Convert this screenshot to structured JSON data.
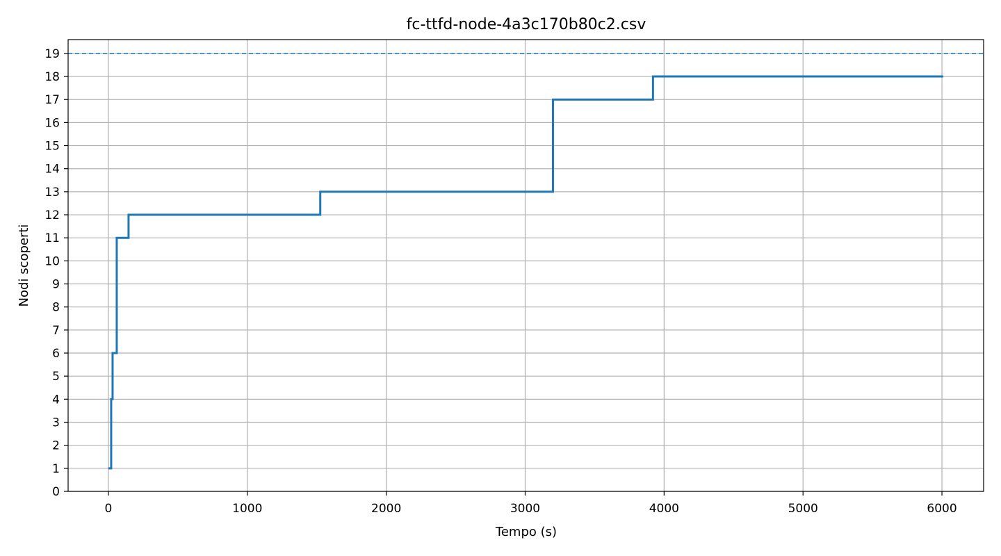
{
  "chart_data": {
    "type": "line",
    "step": "post",
    "title": "fc-ttfd-node-4a3c170b80c2.csv",
    "xlabel": "Tempo (s)",
    "ylabel": "Nodi scoperti",
    "xlim": [
      -290,
      6300
    ],
    "ylim": [
      0,
      19.6
    ],
    "xticks": [
      0,
      1000,
      2000,
      3000,
      4000,
      5000,
      6000
    ],
    "yticks": [
      0,
      1,
      2,
      3,
      4,
      5,
      6,
      7,
      8,
      9,
      10,
      11,
      12,
      13,
      14,
      15,
      16,
      17,
      18,
      19
    ],
    "grid": true,
    "reference_line": {
      "y": 19,
      "style": "dashed",
      "color": "#1f77b4"
    },
    "series": [
      {
        "color": "#1f77b4",
        "x": [
          0,
          20,
          30,
          55,
          60,
          145,
          1525,
          3200,
          3920,
          6010
        ],
        "y": [
          1,
          4,
          6,
          6,
          11,
          12,
          13,
          17,
          18,
          18
        ]
      }
    ]
  }
}
